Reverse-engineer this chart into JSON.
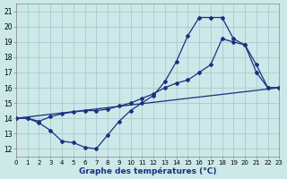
{
  "title": "Graphe des températures (°C)",
  "bg": "#cce8e8",
  "grid_color": "#aacccc",
  "lc": "#1a3080",
  "xlim": [
    0,
    23
  ],
  "ylim": [
    11.5,
    21.5
  ],
  "xticks": [
    0,
    1,
    2,
    3,
    4,
    5,
    6,
    7,
    8,
    9,
    10,
    11,
    12,
    13,
    14,
    15,
    16,
    17,
    18,
    19,
    20,
    21,
    22,
    23
  ],
  "yticks": [
    12,
    13,
    14,
    15,
    16,
    17,
    18,
    19,
    20,
    21
  ],
  "curve1_x": [
    0,
    1,
    2,
    3,
    4,
    5,
    6,
    7,
    8,
    9,
    10,
    11,
    12,
    13,
    14,
    15,
    16,
    17,
    18,
    19,
    20,
    21,
    22,
    23
  ],
  "curve1_y": [
    14.0,
    14.0,
    13.7,
    13.2,
    12.5,
    12.4,
    12.1,
    12.0,
    12.9,
    13.8,
    14.5,
    15.0,
    15.5,
    16.4,
    17.7,
    19.4,
    20.6,
    20.6,
    20.6,
    19.2,
    18.8,
    17.0,
    16.0,
    16.0
  ],
  "curve2_x": [
    0,
    1,
    2,
    3,
    4,
    5,
    6,
    7,
    8,
    9,
    10,
    11,
    12,
    13,
    14,
    15,
    16,
    17,
    18,
    19,
    20,
    21,
    22,
    23
  ],
  "curve2_y": [
    14.0,
    14.0,
    13.8,
    14.1,
    14.3,
    14.4,
    14.5,
    14.5,
    14.6,
    14.8,
    15.0,
    15.3,
    15.6,
    16.0,
    16.3,
    16.5,
    17.0,
    17.5,
    19.2,
    19.0,
    18.8,
    17.5,
    16.0,
    16.0
  ],
  "curve3_x": [
    0,
    23
  ],
  "curve3_y": [
    14.0,
    16.0
  ]
}
